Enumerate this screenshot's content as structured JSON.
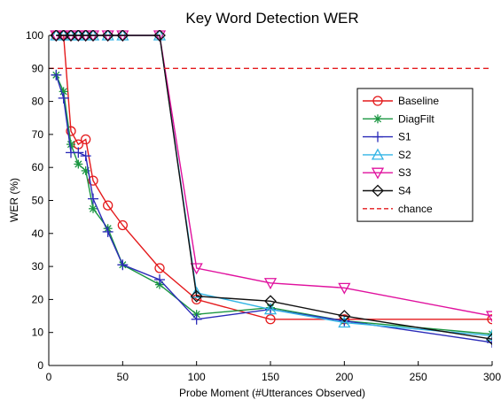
{
  "chart_data": {
    "type": "line",
    "title": "Key Word Detection WER",
    "xlabel": "Probe Moment (#Utterances Observed)",
    "ylabel": "WER (%)",
    "xlim": [
      0,
      300
    ],
    "ylim": [
      0,
      100
    ],
    "xticks": [
      0,
      50,
      100,
      150,
      200,
      250,
      300
    ],
    "yticks": [
      0,
      10,
      20,
      30,
      40,
      50,
      60,
      70,
      80,
      90,
      100
    ],
    "grid": false,
    "legend_position": "right",
    "series": [
      {
        "name": "Baseline",
        "color": "#e41a1c",
        "marker": "circle",
        "dash": "solid",
        "x": [
          5,
          10,
          15,
          20,
          25,
          30,
          40,
          50,
          75,
          100,
          150,
          200,
          300
        ],
        "y": [
          100,
          100,
          71,
          67,
          68.5,
          56,
          48.5,
          42.5,
          29.5,
          20,
          14,
          14,
          14
        ]
      },
      {
        "name": "DiagFilt",
        "color": "#1a9641",
        "marker": "asterisk",
        "dash": "solid",
        "x": [
          5,
          10,
          15,
          20,
          25,
          30,
          40,
          50,
          75,
          100,
          150,
          200,
          300
        ],
        "y": [
          88,
          83,
          67,
          61,
          59,
          47.5,
          41.5,
          30.5,
          24.5,
          15.5,
          17.5,
          13.5,
          9.5
        ]
      },
      {
        "name": "S1",
        "color": "#2a2ab8",
        "marker": "plus",
        "dash": "solid",
        "x": [
          5,
          10,
          15,
          20,
          25,
          30,
          40,
          50,
          75,
          100,
          150,
          200,
          300
        ],
        "y": [
          88,
          81,
          64.5,
          64.5,
          63.5,
          50.5,
          40.5,
          30.5,
          26,
          14,
          17,
          13.5,
          7
        ]
      },
      {
        "name": "S2",
        "color": "#33b5e5",
        "marker": "triangle-up",
        "dash": "solid",
        "x": [
          5,
          10,
          15,
          20,
          25,
          30,
          40,
          50,
          75,
          100,
          150,
          200,
          300
        ],
        "y": [
          100,
          100,
          100,
          100,
          100,
          100,
          100,
          100,
          100,
          22,
          17,
          13,
          9
        ]
      },
      {
        "name": "S3",
        "color": "#e0119e",
        "marker": "triangle-down",
        "dash": "solid",
        "x": [
          5,
          10,
          15,
          20,
          25,
          30,
          40,
          50,
          75,
          100,
          150,
          200,
          300
        ],
        "y": [
          100,
          100,
          100,
          100,
          100,
          100,
          100,
          100,
          100,
          29.5,
          25,
          23.5,
          15
        ]
      },
      {
        "name": "S4",
        "color": "#111111",
        "marker": "diamond",
        "dash": "solid",
        "x": [
          5,
          10,
          15,
          20,
          25,
          30,
          40,
          50,
          75,
          100,
          150,
          200,
          300
        ],
        "y": [
          100,
          100,
          100,
          100,
          100,
          100,
          100,
          100,
          100,
          21,
          19.5,
          15,
          8
        ]
      },
      {
        "name": "chance",
        "color": "#e41a1c",
        "marker": "none",
        "dash": "dashed",
        "x": [
          0,
          300
        ],
        "y": [
          90,
          90
        ]
      }
    ]
  }
}
